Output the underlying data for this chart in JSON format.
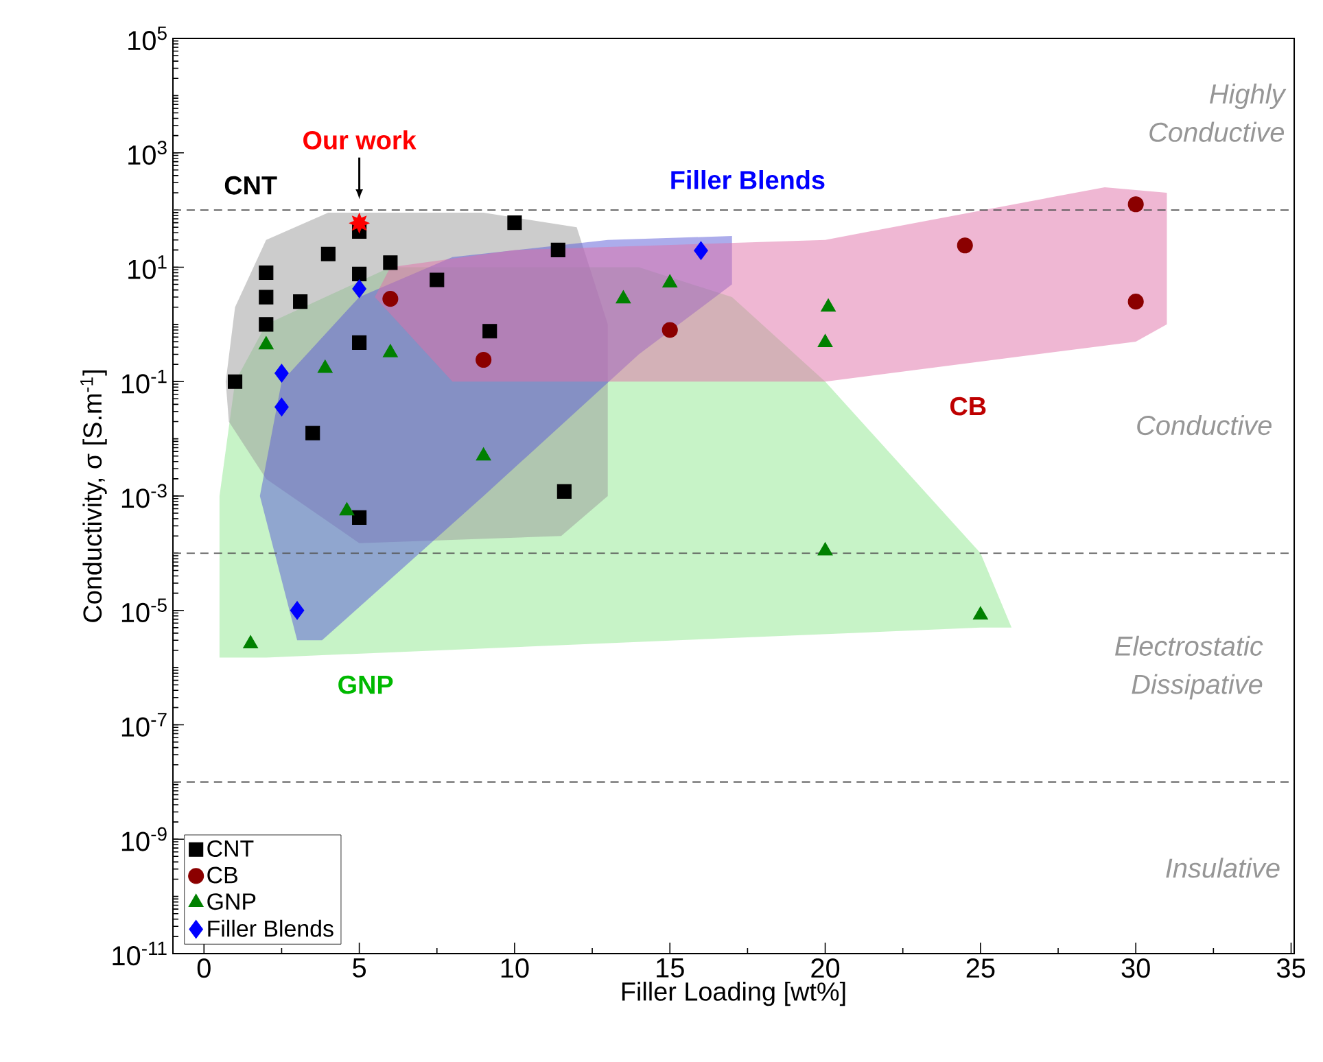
{
  "chart_data": {
    "type": "scatter",
    "xlabel": "Filler Loading [wt%]",
    "ylabel": "Conductivity, σ [S.m$^{-1}$]",
    "log": "y",
    "xlim": [
      -1,
      35.1
    ],
    "ylim": [
      1e-11,
      100000
    ],
    "xticks": [
      0,
      5,
      10,
      15,
      20,
      25,
      30,
      35
    ],
    "yticks": [
      {
        "value": 1e-11,
        "label": "10$^{-11}$"
      },
      {
        "value": 1e-09,
        "label": "10$^{-9}$"
      },
      {
        "value": 1e-07,
        "label": "10$^{-7}$"
      },
      {
        "value": 1e-05,
        "label": "10$^{-5}$"
      },
      {
        "value": 0.001,
        "label": "10$^{-3}$"
      },
      {
        "value": 0.1,
        "label": "10$^{-1}$"
      },
      {
        "value": 10,
        "label": "10$^{1}$"
      },
      {
        "value": 1000,
        "label": "10$^{3}$"
      },
      {
        "value": 100000,
        "label": "10$^{5}$"
      }
    ],
    "legend": "bottom left",
    "ref_lines": [
      {
        "axis": "y",
        "value": 100,
        "color": "#555555",
        "line_style": "dashed"
      },
      {
        "axis": "y",
        "value": 0.0001,
        "color": "#555555",
        "line_style": "dashed"
      },
      {
        "axis": "y",
        "value": 1e-08,
        "color": "#555555",
        "line_style": "dashed"
      }
    ],
    "annotations": [
      "CNT",
      "Filler Blends",
      "CB",
      "GNP",
      "Highly Conductive",
      "Conductive",
      "Electrostatic Dissipative",
      "Insulative"
    ],
    "series": [
      {
        "type": "area",
        "color": "#8fe88f",
        "x": [
          0.5,
          0.5,
          2,
          25,
          26,
          25,
          20,
          17,
          14,
          6,
          2,
          1
        ],
        "values": [
          0.001,
          1.5e-06,
          1.5e-06,
          5e-06,
          5e-06,
          0.0001,
          0.1,
          3,
          10,
          10,
          1,
          0.1
        ]
      },
      {
        "type": "area",
        "color": "#9a9a9a",
        "x": [
          0.7,
          1,
          2,
          4,
          9,
          12,
          13,
          13,
          11.5,
          5,
          2,
          0.8
        ],
        "values": [
          0.1,
          2,
          30,
          90,
          90,
          50,
          1,
          0.001,
          0.0002,
          0.00015,
          0.002,
          0.02
        ]
      },
      {
        "type": "area",
        "color": "#5a5ad8",
        "x": [
          3,
          1.8,
          2.5,
          5,
          8,
          13,
          17,
          17,
          14,
          9,
          3.8
        ],
        "values": [
          3e-06,
          0.001,
          0.1,
          3,
          15,
          30,
          35,
          5,
          0.3,
          0.001,
          3e-06
        ]
      },
      {
        "type": "area",
        "color": "#e070a8",
        "x": [
          5.5,
          8,
          20,
          30,
          31,
          31,
          29,
          20,
          10,
          6
        ],
        "values": [
          3,
          0.1,
          0.1,
          0.5,
          1,
          200,
          250,
          30,
          20,
          10
        ]
      },
      {
        "name": "CNT",
        "color": "#000000",
        "marker": "square",
        "x": [
          1,
          2,
          2,
          2,
          3.1,
          4,
          5,
          5,
          5,
          6,
          7.5,
          10,
          11.4,
          9.2,
          3.5,
          11.6,
          5
        ],
        "values": [
          0.1,
          8,
          3,
          1,
          2.5,
          17,
          42,
          7.6,
          0.48,
          12,
          6,
          60,
          20,
          0.76,
          0.0126,
          0.0012,
          0.00042
        ]
      },
      {
        "name": "CB",
        "color": "#8b0000",
        "marker": "circle",
        "x": [
          6,
          9,
          30,
          24.5,
          30,
          15
        ],
        "values": [
          2.8,
          0.24,
          126,
          24,
          2.5,
          0.8
        ]
      },
      {
        "name": "GNP",
        "color": "#008000",
        "marker": "triangle",
        "x": [
          2,
          3.9,
          6,
          9,
          4.6,
          13.5,
          15,
          20.1,
          20,
          20,
          25,
          1.5
        ],
        "values": [
          0.44,
          0.17,
          0.32,
          0.005,
          0.00055,
          2.8,
          5.3,
          2,
          0.48,
          0.00011,
          8.3e-06,
          2.6e-06
        ]
      },
      {
        "name": "Filler Blends",
        "color": "#0000ff",
        "marker": "diamond",
        "x": [
          5,
          2.5,
          2.5,
          16,
          3
        ],
        "values": [
          4.2,
          0.14,
          0.036,
          19.5,
          1e-05
        ]
      },
      {
        "name": "Our work",
        "color": "#ff0000",
        "marker": "star",
        "x": [
          5
        ],
        "values": [
          59
        ]
      }
    ]
  }
}
